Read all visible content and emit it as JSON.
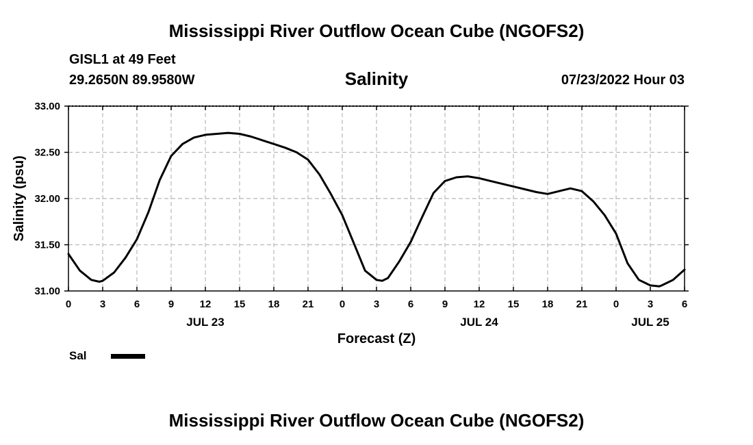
{
  "page": {
    "title_top": "Mississippi River Outflow Ocean Cube (NGOFS2)",
    "title_bottom": "Mississippi River Outflow Ocean Cube (NGOFS2)",
    "station": "GISL1 at 49 Feet",
    "coords": "29.2650N  89.9580W",
    "chart_title": "Salinity",
    "timestamp": "07/23/2022 Hour 03"
  },
  "chart_data": {
    "type": "line",
    "title": "Salinity",
    "xlabel": "Forecast (Z)",
    "ylabel": "Salinity (psu)",
    "ylim": [
      31.0,
      33.0
    ],
    "xlim": [
      0,
      54
    ],
    "y_ticks": [
      "31.00",
      "31.50",
      "32.00",
      "32.50",
      "33.00"
    ],
    "x_tick_labels": [
      "0",
      "3",
      "6",
      "9",
      "12",
      "15",
      "18",
      "21",
      "0",
      "3",
      "6",
      "9",
      "12",
      "15",
      "18",
      "21",
      "0",
      "3",
      "6"
    ],
    "date_labels": [
      {
        "label": "JUL 23",
        "at": 12
      },
      {
        "label": "JUL 24",
        "at": 36
      },
      {
        "label": "JUL 25",
        "at": 51
      }
    ],
    "grid": true,
    "series": [
      {
        "name": "Sal",
        "color": "#000000",
        "x": [
          0,
          1,
          2,
          2.7,
          3,
          4,
          5,
          6,
          7,
          8,
          9,
          10,
          11,
          12,
          13,
          14,
          15,
          16,
          17,
          18,
          19,
          20,
          21,
          22,
          23,
          24,
          25,
          26,
          27,
          27.5,
          28,
          29,
          30,
          31,
          32,
          33,
          34,
          35,
          36,
          37,
          38,
          39,
          40,
          41,
          42,
          43,
          44,
          45,
          46,
          47,
          48,
          49,
          50,
          51,
          51.8,
          52,
          53,
          54
        ],
        "y": [
          31.4,
          31.22,
          31.12,
          31.1,
          31.11,
          31.2,
          31.36,
          31.56,
          31.85,
          32.2,
          32.46,
          32.59,
          32.66,
          32.69,
          32.7,
          32.71,
          32.7,
          32.67,
          32.63,
          32.59,
          32.55,
          32.5,
          32.42,
          32.26,
          32.05,
          31.82,
          31.52,
          31.22,
          31.12,
          31.11,
          31.14,
          31.32,
          31.53,
          31.8,
          32.06,
          32.19,
          32.23,
          32.24,
          32.22,
          32.19,
          32.16,
          32.13,
          32.1,
          32.07,
          32.05,
          32.08,
          32.11,
          32.08,
          31.97,
          31.82,
          31.62,
          31.3,
          31.12,
          31.06,
          31.05,
          31.06,
          31.12,
          31.23
        ]
      }
    ],
    "legend": "bottom-left"
  }
}
